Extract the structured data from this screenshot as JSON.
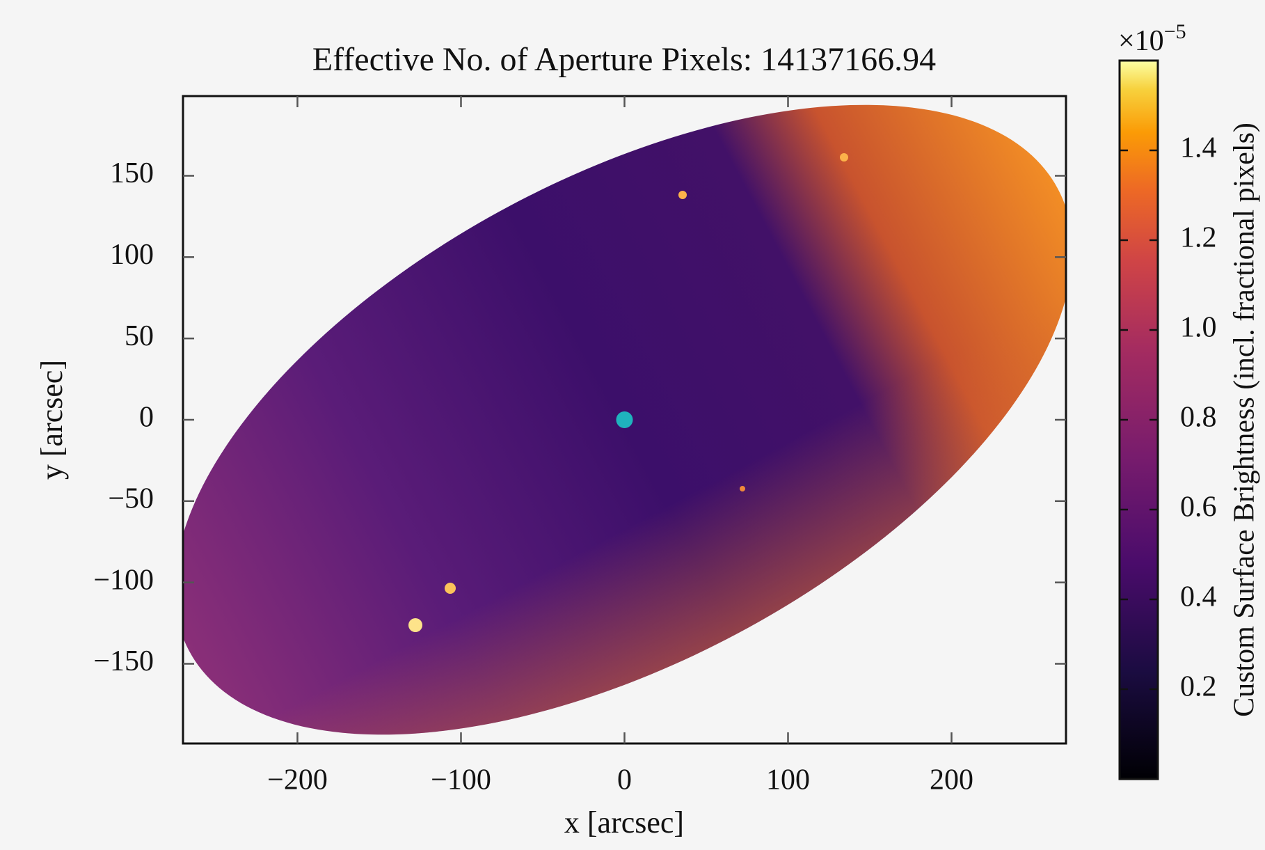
{
  "chart_data": {
    "type": "image",
    "title": "Effective No. of Aperture Pixels: 14137166.94",
    "xlabel": "x [arcsec]",
    "ylabel": "y [arcsec]",
    "xlim": [
      -270,
      270
    ],
    "ylim": [
      -199,
      199
    ],
    "xticks": [
      {
        "value": -200,
        "label": "−200"
      },
      {
        "value": -100,
        "label": "−100"
      },
      0,
      100,
      200
    ],
    "yticks": [
      {
        "value": -150,
        "label": "−150"
      },
      {
        "value": -100,
        "label": "−100"
      },
      {
        "value": -50,
        "label": "−50"
      },
      0,
      50,
      100,
      150
    ],
    "points": {
      "x": [
        0
      ],
      "y": [
        0
      ],
      "color": "#1fb3bd"
    },
    "colorbar": {
      "label": "Custom Surface Brightness (incl. fractional pixels)",
      "scale_base": "×10",
      "scale_exponent": "−5",
      "lim": [
        0,
        1.6
      ],
      "ticks": [
        0.2,
        0.4,
        0.6,
        0.8,
        {
          "value": 1.0,
          "label": "1.0"
        },
        1.2,
        1.4
      ],
      "colormap": "inferno"
    }
  }
}
